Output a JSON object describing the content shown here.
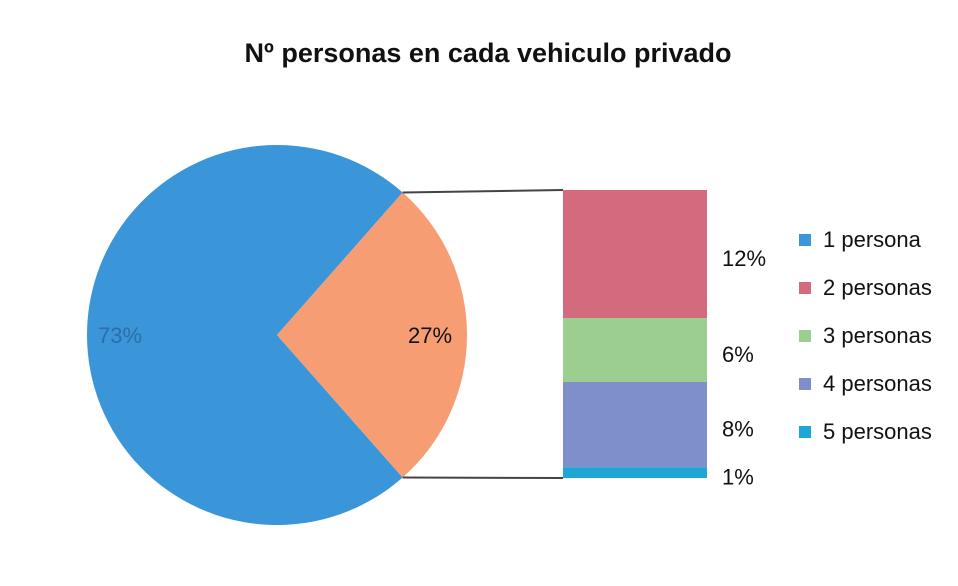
{
  "chart_data": {
    "type": "pie",
    "title": "Nº personas en cada vehiculo privado",
    "categories": [
      "1 persona",
      "2 personas",
      "3 personas",
      "4 personas",
      "5 personas"
    ],
    "values": [
      73,
      12,
      6,
      8,
      1
    ],
    "value_labels": [
      "73%",
      "12%",
      "6%",
      "8%",
      "1%"
    ],
    "colors": [
      "#3a96d8",
      "#d46a7e",
      "#9ccf8f",
      "#7f8fcc",
      "#1ea6d6"
    ],
    "split_value": 27,
    "split_label": "27%",
    "split_color": "#f79d74"
  }
}
